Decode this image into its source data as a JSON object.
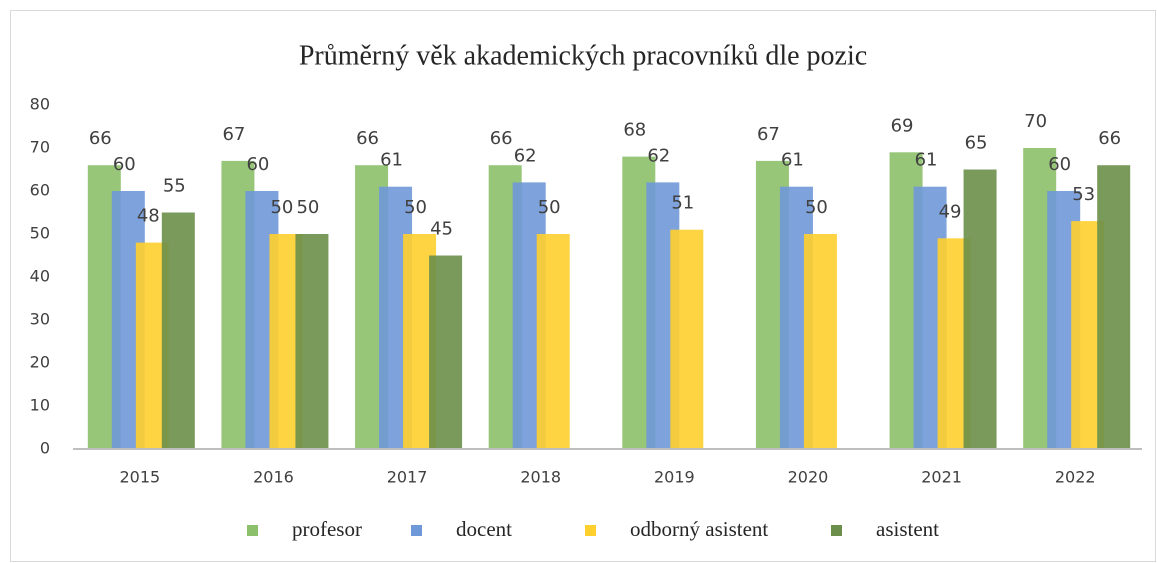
{
  "chart_data": {
    "type": "bar",
    "title": "Průměrný věk akademických pracovníků dle pozic",
    "categories": [
      "2015",
      "2016",
      "2017",
      "2018",
      "2019",
      "2020",
      "2021",
      "2022"
    ],
    "series": [
      {
        "name": "profesor",
        "color": "#8cc06a",
        "values": [
          66,
          67,
          66,
          66,
          68,
          67,
          69,
          70
        ]
      },
      {
        "name": "docent",
        "color": "#6f98d8",
        "values": [
          60,
          60,
          61,
          62,
          62,
          61,
          61,
          60
        ]
      },
      {
        "name": "odborný asistent",
        "color": "#ffcf2e",
        "values": [
          48,
          50,
          50,
          50,
          51,
          50,
          49,
          53
        ]
      },
      {
        "name": "asistent",
        "color": "#6b8f4a",
        "values": [
          55,
          50,
          45,
          null,
          null,
          null,
          65,
          66
        ]
      }
    ],
    "ylim": [
      0,
      80
    ],
    "yticks": [
      0,
      10,
      20,
      30,
      40,
      50,
      60,
      70,
      80
    ],
    "grid": false,
    "legend": "bottom"
  }
}
